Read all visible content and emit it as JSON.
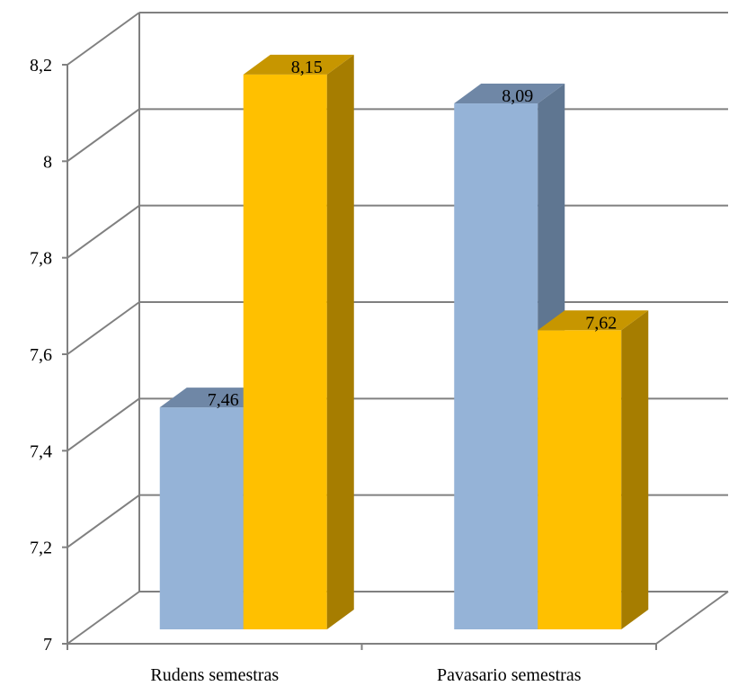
{
  "chart_data": {
    "type": "bar",
    "categories": [
      "Rudens semestras",
      "Pavasario semestras"
    ],
    "series": [
      {
        "values": [
          7.46,
          8.09
        ],
        "color": "#95B3D7",
        "side_color": "#5F7691",
        "top_color": "#6F87A6"
      },
      {
        "values": [
          8.15,
          7.62
        ],
        "color": "#FFC000",
        "side_color": "#A67D00",
        "top_color": "#C79600"
      }
    ],
    "data_labels": [
      [
        "7,46",
        "8,09"
      ],
      [
        "8,15",
        "7,62"
      ]
    ],
    "yticks": [
      "7",
      "7,2",
      "7,4",
      "7,6",
      "7,8",
      "8",
      "8,2"
    ],
    "ylim": [
      7,
      8.2
    ],
    "title": "",
    "xlabel": "",
    "ylabel": "",
    "grid": true,
    "style": "3d-clustered-column",
    "wall_color": "#808080"
  }
}
